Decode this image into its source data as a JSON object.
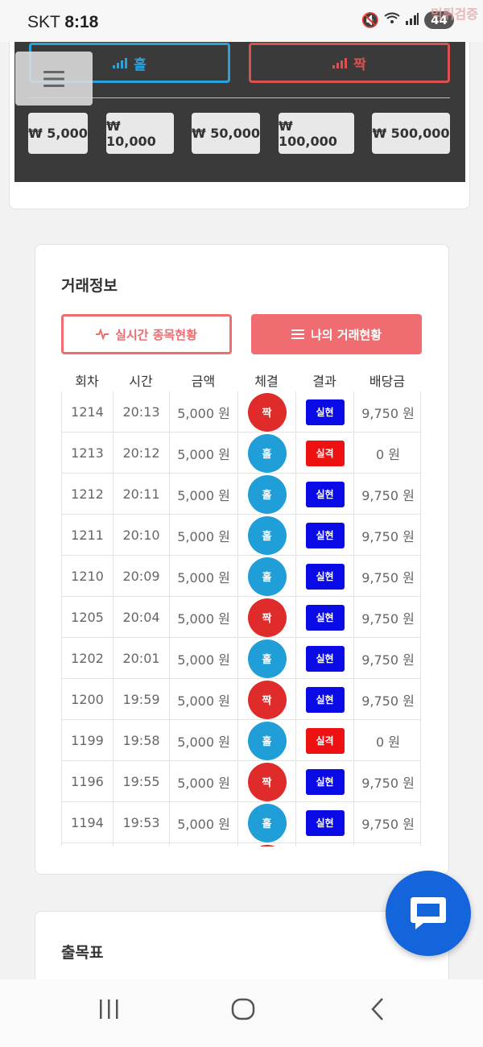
{
  "status_bar": {
    "carrier": "SKT",
    "time": "8:18",
    "battery": "44",
    "watermark": "먹튀검증",
    "icons": [
      "mute-icon",
      "wifi-icon",
      "signal-icon",
      "battery-icon"
    ]
  },
  "betting": {
    "odd_label": "홀",
    "even_label": "짝",
    "amounts": [
      "₩ 5,000",
      "₩ 10,000",
      "₩ 50,000",
      "₩ 100,000",
      "₩ 500,000"
    ]
  },
  "trade_info": {
    "title": "거래정보",
    "tab_live": "실시간 종목현황",
    "tab_mine": "나의 거래현황",
    "columns": [
      "회차",
      "시간",
      "금액",
      "체결",
      "결과",
      "배당금"
    ],
    "rows": [
      {
        "round": "1214",
        "time": "20:13",
        "amount": "5,000 원",
        "pick": "짝",
        "result": "실현",
        "payout": "9,750 원"
      },
      {
        "round": "1213",
        "time": "20:12",
        "amount": "5,000 원",
        "pick": "홀",
        "result": "실격",
        "payout": "0 원"
      },
      {
        "round": "1212",
        "time": "20:11",
        "amount": "5,000 원",
        "pick": "홀",
        "result": "실현",
        "payout": "9,750 원"
      },
      {
        "round": "1211",
        "time": "20:10",
        "amount": "5,000 원",
        "pick": "홀",
        "result": "실현",
        "payout": "9,750 원"
      },
      {
        "round": "1210",
        "time": "20:09",
        "amount": "5,000 원",
        "pick": "홀",
        "result": "실현",
        "payout": "9,750 원"
      },
      {
        "round": "1205",
        "time": "20:04",
        "amount": "5,000 원",
        "pick": "짝",
        "result": "실현",
        "payout": "9,750 원"
      },
      {
        "round": "1202",
        "time": "20:01",
        "amount": "5,000 원",
        "pick": "홀",
        "result": "실현",
        "payout": "9,750 원"
      },
      {
        "round": "1200",
        "time": "19:59",
        "amount": "5,000 원",
        "pick": "짝",
        "result": "실현",
        "payout": "9,750 원"
      },
      {
        "round": "1199",
        "time": "19:58",
        "amount": "5,000 원",
        "pick": "홀",
        "result": "실격",
        "payout": "0 원"
      },
      {
        "round": "1196",
        "time": "19:55",
        "amount": "5,000 원",
        "pick": "짝",
        "result": "실현",
        "payout": "9,750 원"
      },
      {
        "round": "1194",
        "time": "19:53",
        "amount": "5,000 원",
        "pick": "홀",
        "result": "실현",
        "payout": "9,750 원"
      },
      {
        "round": "",
        "time": "",
        "amount": "",
        "pick": "짝",
        "result": "",
        "payout": ""
      }
    ]
  },
  "chart_section": {
    "title": "출목표"
  },
  "colors": {
    "odd": "#1f9ed8",
    "even": "#e02b2b",
    "win": "#0a0ae6",
    "lose": "#ee1111",
    "accent": "#ef6d71",
    "chat": "#1464dc"
  }
}
